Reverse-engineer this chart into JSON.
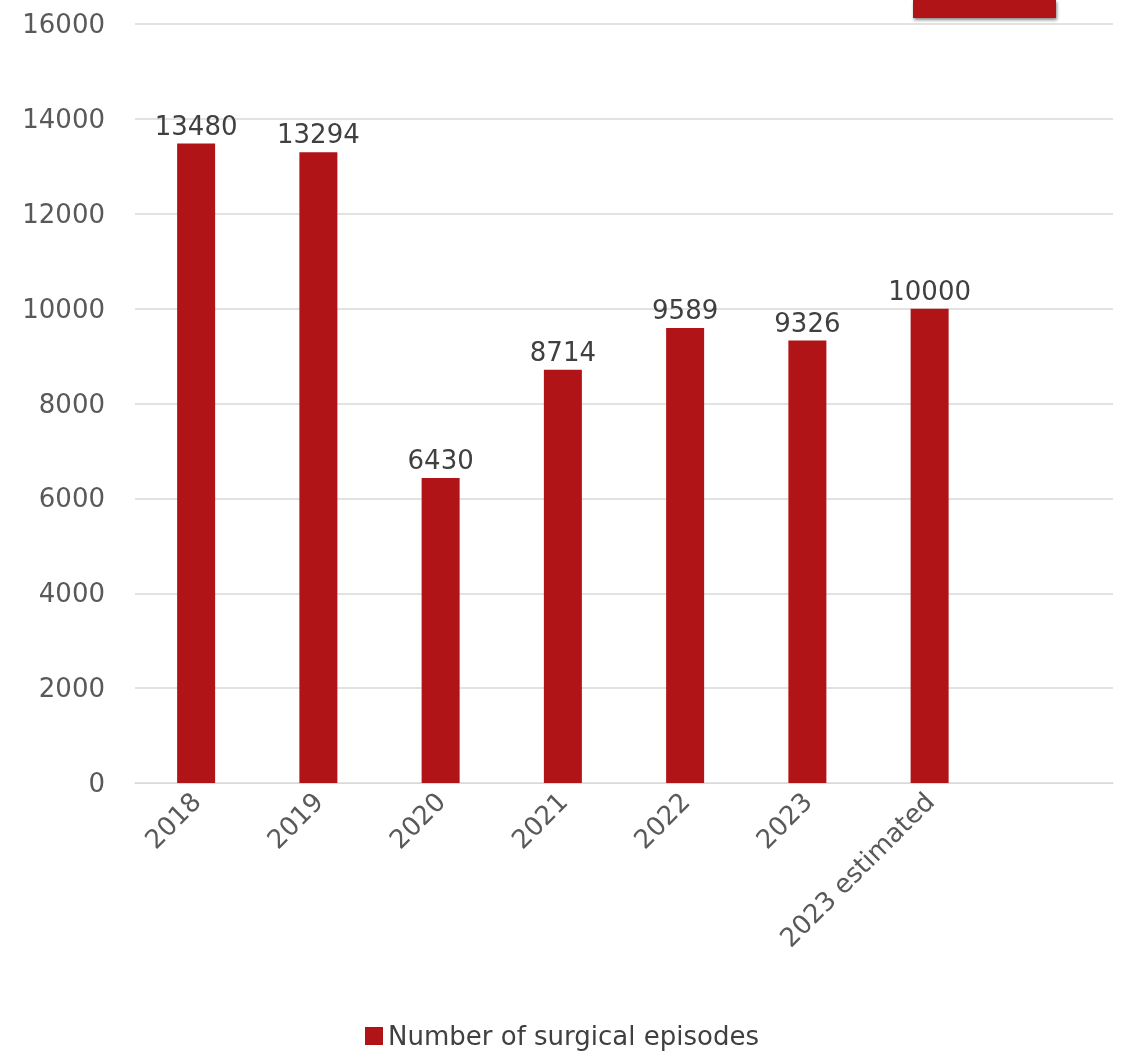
{
  "chart_data": {
    "type": "bar",
    "categories": [
      "2018",
      "2019",
      "2020",
      "2021",
      "2022",
      "2023",
      "2023 estimated",
      null
    ],
    "series": [
      {
        "name": "Number of surgical episodes",
        "color": "#b01416",
        "values": [
          13480,
          13294,
          6430,
          8714,
          9589,
          9326,
          10000,
          null
        ]
      }
    ],
    "ylim": [
      0,
      16000
    ],
    "yticks": [
      0,
      2000,
      4000,
      6000,
      8000,
      10000,
      12000,
      14000,
      16000
    ],
    "grid": "y",
    "legend": "bottom",
    "data_labels": true
  }
}
